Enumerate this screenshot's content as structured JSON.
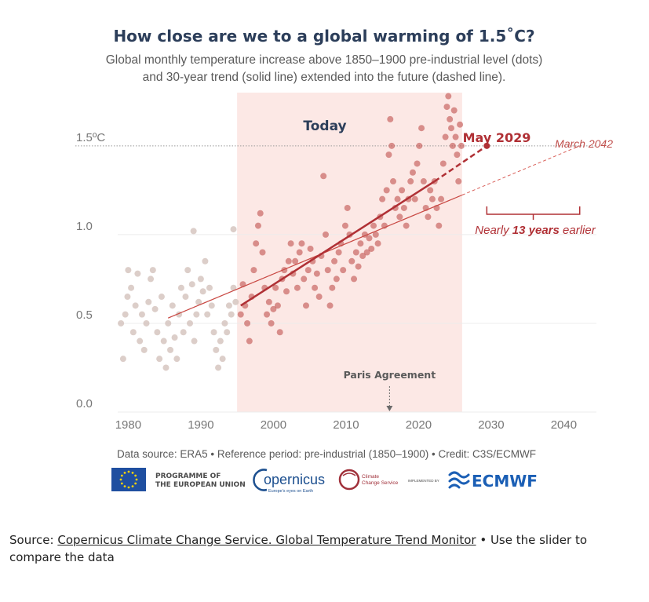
{
  "chart_data": {
    "type": "scatter",
    "title": "How close are we to a global warming of 1.5˚C?",
    "subtitle_lines": [
      "Global monthly temperature increase above 1850–1900 pre-industrial level (dots)",
      "and 30-year trend (solid line) extended into the future (dashed line)."
    ],
    "xlim": [
      1976.5,
      2044.5
    ],
    "ylim": [
      0,
      1.8
    ],
    "x_ticks": [
      "1980",
      "1990",
      "2000",
      "2010",
      "2020",
      "2030",
      "2040"
    ],
    "y_ticks": [
      "0.0",
      "0.5",
      "1.0",
      "1.5ºC"
    ],
    "grid": "horizontal",
    "threshold": 1.5,
    "today_band": [
      1995,
      2026
    ],
    "series": [
      {
        "kind": "monthly-dots",
        "points": [
          [
            1979.0,
            0.5
          ],
          [
            1979.3,
            0.3
          ],
          [
            1979.6,
            0.55
          ],
          [
            1979.9,
            0.65
          ],
          [
            1980.0,
            0.8
          ],
          [
            1980.4,
            0.7
          ],
          [
            1980.7,
            0.45
          ],
          [
            1981.0,
            0.6
          ],
          [
            1981.3,
            0.78
          ],
          [
            1981.6,
            0.4
          ],
          [
            1981.9,
            0.55
          ],
          [
            1982.2,
            0.35
          ],
          [
            1982.5,
            0.5
          ],
          [
            1982.8,
            0.62
          ],
          [
            1983.1,
            0.75
          ],
          [
            1983.4,
            0.8
          ],
          [
            1983.7,
            0.58
          ],
          [
            1984.0,
            0.45
          ],
          [
            1984.3,
            0.3
          ],
          [
            1984.6,
            0.65
          ],
          [
            1984.9,
            0.4
          ],
          [
            1985.2,
            0.25
          ],
          [
            1985.5,
            0.5
          ],
          [
            1985.8,
            0.35
          ],
          [
            1986.1,
            0.6
          ],
          [
            1986.4,
            0.42
          ],
          [
            1986.7,
            0.3
          ],
          [
            1987.0,
            0.55
          ],
          [
            1987.3,
            0.7
          ],
          [
            1987.6,
            0.45
          ],
          [
            1987.9,
            0.65
          ],
          [
            1988.2,
            0.8
          ],
          [
            1988.5,
            0.5
          ],
          [
            1988.8,
            0.72
          ],
          [
            1989.1,
            0.4
          ],
          [
            1989.4,
            0.55
          ],
          [
            1989.7,
            0.62
          ],
          [
            1990.0,
            0.75
          ],
          [
            1990.3,
            0.68
          ],
          [
            1990.6,
            0.85
          ],
          [
            1990.9,
            0.55
          ],
          [
            1991.2,
            0.7
          ],
          [
            1991.5,
            0.6
          ],
          [
            1991.8,
            0.45
          ],
          [
            1992.1,
            0.35
          ],
          [
            1992.4,
            0.25
          ],
          [
            1992.7,
            0.4
          ],
          [
            1993.0,
            0.3
          ],
          [
            1993.3,
            0.5
          ],
          [
            1993.6,
            0.45
          ],
          [
            1993.9,
            0.6
          ],
          [
            1994.2,
            0.55
          ],
          [
            1994.5,
            0.7
          ],
          [
            1994.8,
            0.62
          ],
          [
            1989.0,
            1.02
          ],
          [
            1994.5,
            1.03
          ],
          [
            1995.5,
            0.55
          ],
          [
            1995.8,
            0.72
          ],
          [
            1996.1,
            0.6
          ],
          [
            1996.4,
            0.5
          ],
          [
            1996.7,
            0.4
          ],
          [
            1997.0,
            0.65
          ],
          [
            1997.3,
            0.8
          ],
          [
            1997.6,
            0.95
          ],
          [
            1997.9,
            1.05
          ],
          [
            1998.2,
            1.12
          ],
          [
            1998.5,
            0.9
          ],
          [
            1998.8,
            0.7
          ],
          [
            1999.1,
            0.55
          ],
          [
            1999.4,
            0.62
          ],
          [
            1999.7,
            0.5
          ],
          [
            2000.0,
            0.58
          ],
          [
            2000.3,
            0.7
          ],
          [
            2000.6,
            0.6
          ],
          [
            2000.9,
            0.45
          ],
          [
            2001.2,
            0.75
          ],
          [
            2001.5,
            0.8
          ],
          [
            2001.8,
            0.68
          ],
          [
            2002.1,
            0.85
          ],
          [
            2002.4,
            0.95
          ],
          [
            2002.7,
            0.78
          ],
          [
            2003.0,
            0.85
          ],
          [
            2003.3,
            0.7
          ],
          [
            2003.6,
            0.9
          ],
          [
            2003.9,
            0.95
          ],
          [
            2004.2,
            0.75
          ],
          [
            2004.5,
            0.6
          ],
          [
            2004.8,
            0.8
          ],
          [
            2005.1,
            0.92
          ],
          [
            2005.4,
            0.85
          ],
          [
            2005.7,
            0.7
          ],
          [
            2006.0,
            0.78
          ],
          [
            2006.3,
            0.65
          ],
          [
            2006.6,
            0.88
          ],
          [
            2006.9,
            1.33
          ],
          [
            2007.2,
            1.0
          ],
          [
            2007.5,
            0.8
          ],
          [
            2007.8,
            0.6
          ],
          [
            2008.1,
            0.7
          ],
          [
            2008.4,
            0.85
          ],
          [
            2008.7,
            0.75
          ],
          [
            2009.0,
            0.9
          ],
          [
            2009.3,
            0.95
          ],
          [
            2009.6,
            0.8
          ],
          [
            2009.9,
            1.05
          ],
          [
            2010.2,
            1.15
          ],
          [
            2010.5,
            1.0
          ],
          [
            2010.8,
            0.85
          ],
          [
            2011.1,
            0.75
          ],
          [
            2011.4,
            0.9
          ],
          [
            2011.7,
            0.82
          ],
          [
            2012.0,
            0.95
          ],
          [
            2012.3,
            0.88
          ],
          [
            2012.6,
            1.0
          ],
          [
            2012.9,
            0.9
          ],
          [
            2013.2,
            0.98
          ],
          [
            2013.5,
            0.92
          ],
          [
            2013.8,
            1.05
          ],
          [
            2014.1,
            1.0
          ],
          [
            2014.4,
            0.95
          ],
          [
            2014.7,
            1.1
          ],
          [
            2015.0,
            1.2
          ],
          [
            2015.3,
            1.05
          ],
          [
            2015.6,
            1.25
          ],
          [
            2015.9,
            1.45
          ],
          [
            2016.1,
            1.65
          ],
          [
            2016.3,
            1.5
          ],
          [
            2016.5,
            1.3
          ],
          [
            2016.8,
            1.15
          ],
          [
            2017.1,
            1.2
          ],
          [
            2017.4,
            1.1
          ],
          [
            2017.7,
            1.25
          ],
          [
            2018.0,
            1.15
          ],
          [
            2018.3,
            1.05
          ],
          [
            2018.6,
            1.2
          ],
          [
            2018.9,
            1.3
          ],
          [
            2019.2,
            1.35
          ],
          [
            2019.5,
            1.2
          ],
          [
            2019.8,
            1.4
          ],
          [
            2020.1,
            1.5
          ],
          [
            2020.4,
            1.6
          ],
          [
            2020.7,
            1.3
          ],
          [
            2021.0,
            1.15
          ],
          [
            2021.3,
            1.1
          ],
          [
            2021.6,
            1.25
          ],
          [
            2021.9,
            1.2
          ],
          [
            2022.2,
            1.3
          ],
          [
            2022.5,
            1.15
          ],
          [
            2022.8,
            1.05
          ],
          [
            2023.1,
            1.2
          ],
          [
            2023.4,
            1.4
          ],
          [
            2023.7,
            1.55
          ],
          [
            2023.9,
            1.72
          ],
          [
            2024.1,
            1.78
          ],
          [
            2024.3,
            1.65
          ],
          [
            2024.5,
            1.6
          ],
          [
            2024.7,
            1.5
          ],
          [
            2024.9,
            1.7
          ],
          [
            2025.1,
            1.55
          ],
          [
            2025.3,
            1.45
          ],
          [
            2025.5,
            1.3
          ],
          [
            2025.7,
            1.62
          ],
          [
            2025.9,
            1.5
          ]
        ]
      },
      {
        "kind": "trend-thin",
        "points": [
          [
            1985.5,
            0.53
          ],
          [
            2042.2,
            1.5
          ]
        ]
      },
      {
        "kind": "trend-solid",
        "points": [
          [
            1995.5,
            0.6
          ],
          [
            2022.2,
            1.3
          ]
        ]
      },
      {
        "kind": "trend-dashed",
        "points": [
          [
            2022.2,
            1.3
          ],
          [
            2029.4,
            1.5
          ]
        ]
      }
    ],
    "annotations": {
      "today": "Today",
      "may_2029": "May 2029",
      "march_2042": "March 2042",
      "earlier_prefix": "Nearly ",
      "earlier_bold": "13 years",
      "earlier_suffix": " earlier",
      "paris": "Paris Agreement",
      "paris_year": 2016
    },
    "credit": "Data source: ERA5 • Reference period: pre-industrial (1850–1900) • Credit: C3S/ECMWF",
    "colors": {
      "band": "#fce8e5",
      "dots_past": "#d6c6c0",
      "dots_recent": "#c0504d",
      "trend": "#b03035",
      "threshold_line": "#9a9a9a"
    }
  },
  "logos": {
    "eu_line1": "PROGRAMME OF",
    "eu_line2": "THE EUROPEAN UNION",
    "copernicus": "opernicus",
    "copernicus_tag": "Europe's eyes on Earth",
    "c3s_line1": "Climate",
    "c3s_line2": "Change Service",
    "implemented_by": "IMPLEMENTED BY",
    "ecmwf": "ECMWF"
  },
  "source": {
    "prefix": "Source: ",
    "link": "Copernicus Climate Change Service. Global Temperature Trend Monitor",
    "suffix": " • Use the slider to compare the data"
  }
}
